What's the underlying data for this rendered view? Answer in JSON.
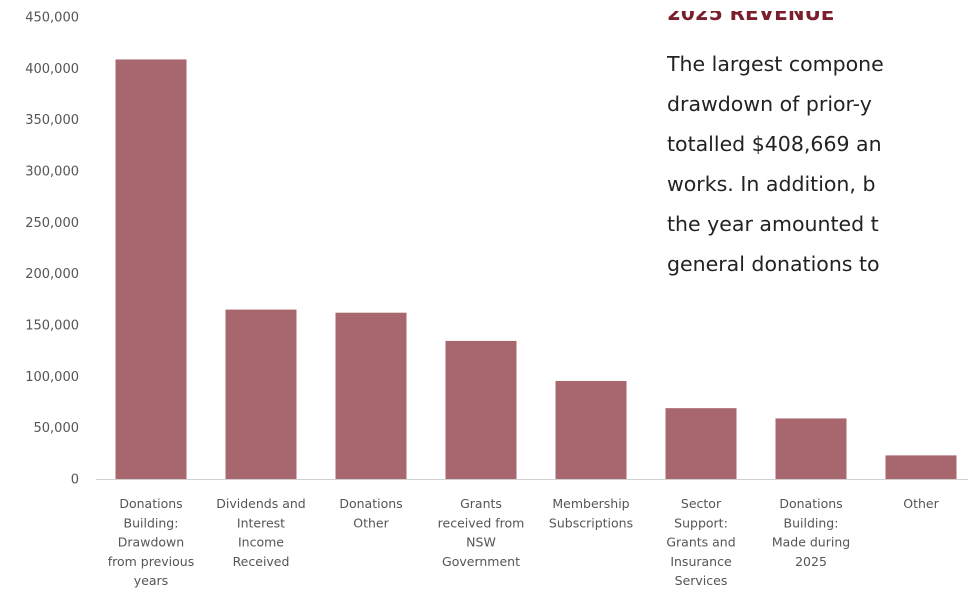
{
  "chart_data": {
    "type": "bar",
    "categories": [
      [
        "Donations",
        "Building:",
        "Drawdown",
        "from previous",
        "years"
      ],
      [
        "Dividends and",
        "Interest",
        "Income",
        "Received"
      ],
      [
        "Donations",
        "Other"
      ],
      [
        "Grants",
        "received from",
        "NSW",
        "Government"
      ],
      [
        "Membership",
        "Subscriptions"
      ],
      [
        "Sector",
        "Support:",
        "Grants and",
        "Insurance",
        "Services"
      ],
      [
        "Donations",
        "Building:",
        "Made during",
        "2025"
      ],
      [
        "Other"
      ]
    ],
    "values": [
      408669,
      165000,
      162000,
      134500,
      95500,
      69000,
      59000,
      23000
    ],
    "yticks": [
      "0",
      "50,000",
      "100,000",
      "150,000",
      "200,000",
      "250,000",
      "300,000",
      "350,000",
      "400,000",
      "450,000"
    ],
    "ylim": [
      0,
      450000
    ],
    "grid": false,
    "colors": {
      "bar": "#a8676f"
    }
  },
  "section": {
    "heading": "2025 REVENUE",
    "paragraph_lines": [
      "The largest compone",
      "drawdown of prior-y",
      "totalled $408,669 an",
      "works. In addition, b",
      "the year amounted t",
      "general donations to"
    ]
  }
}
